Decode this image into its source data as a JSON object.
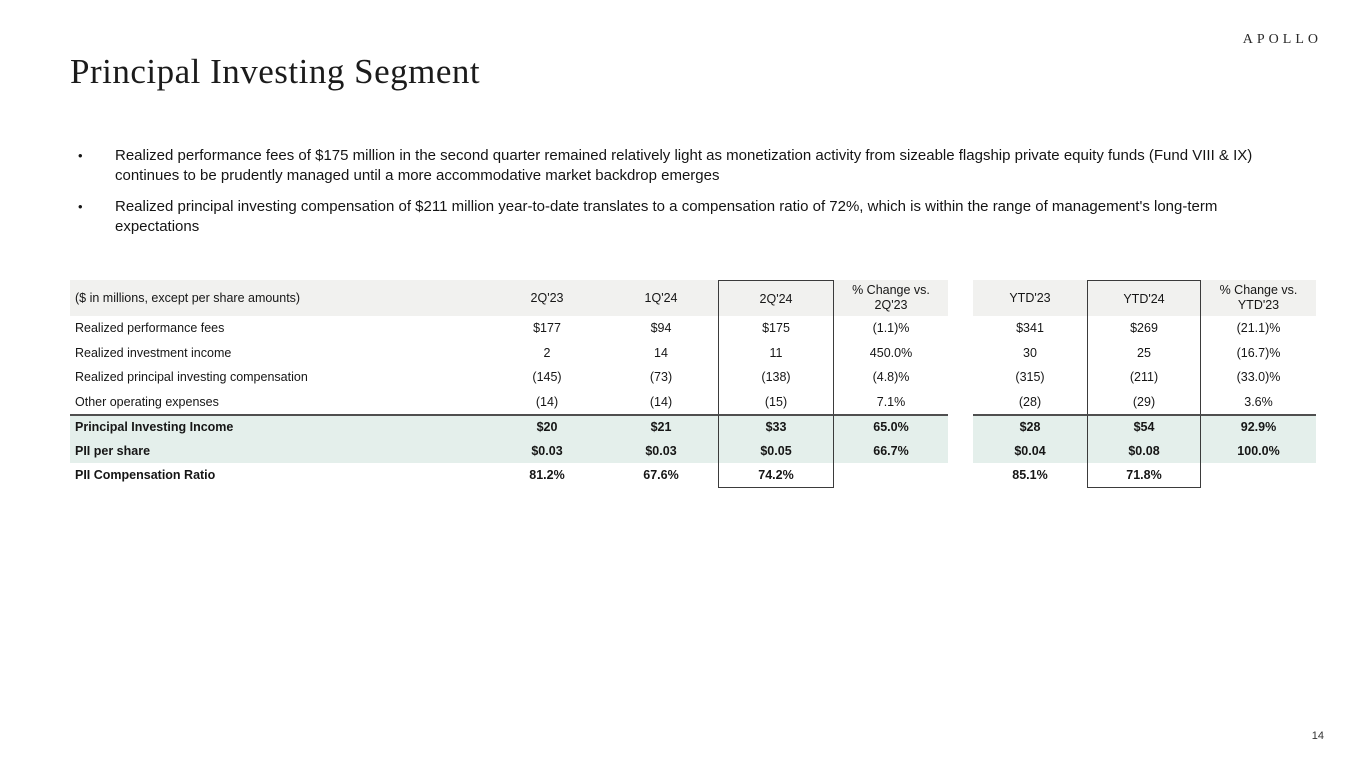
{
  "logo_text": "APOLLO",
  "page_title": "Principal Investing Segment",
  "bullets": [
    "Realized performance fees of $175 million in the second quarter remained relatively light as monetization activity from sizeable flagship private equity funds (Fund VIII & IX) continues to be prudently managed until a more accommodative market backdrop emerges",
    "Realized principal investing compensation of $211 million year-to-date translates to a compensation ratio of 72%, which is within the range of management's long-term expectations"
  ],
  "bullet_marker": "•",
  "table": {
    "unit_label": "($ in millions, except per share amounts)",
    "columns": [
      "2Q'23",
      "1Q'24",
      "2Q'24",
      "% Change vs. 2Q'23",
      "YTD'23",
      "YTD'24",
      "% Change vs. YTD'23"
    ],
    "rows": [
      {
        "label": "Realized performance fees",
        "values": [
          "$177",
          "$94",
          "$175",
          "(1.1)%",
          "$341",
          "$269",
          "(21.1)%"
        ]
      },
      {
        "label": "Realized investment income",
        "values": [
          "2",
          "14",
          "11",
          "450.0%",
          "30",
          "25",
          "(16.7)%"
        ]
      },
      {
        "label": "Realized principal investing compensation",
        "values": [
          "(145)",
          "(73)",
          "(138)",
          "(4.8)%",
          "(315)",
          "(211)",
          "(33.0)%"
        ]
      },
      {
        "label": "Other operating expenses",
        "values": [
          "(14)",
          "(14)",
          "(15)",
          "7.1%",
          "(28)",
          "(29)",
          "3.6%"
        ]
      },
      {
        "label": "Principal Investing Income",
        "values": [
          "$20",
          "$21",
          "$33",
          "65.0%",
          "$28",
          "$54",
          "92.9%"
        ]
      },
      {
        "label": "PII per share",
        "values": [
          "$0.03",
          "$0.03",
          "$0.05",
          "66.7%",
          "$0.04",
          "$0.08",
          "100.0%"
        ]
      },
      {
        "label": "PII Compensation Ratio",
        "values": [
          "81.2%",
          "67.6%",
          "74.2%",
          "",
          "85.1%",
          "71.8%",
          ""
        ]
      }
    ]
  },
  "page_number": "14",
  "colors": {
    "header_band": "#f1f1ef",
    "highlight_rows": "#e4efeb",
    "separator_line": "#4f4f4f",
    "box_border": "#3b3b3b",
    "text": "#161616"
  }
}
